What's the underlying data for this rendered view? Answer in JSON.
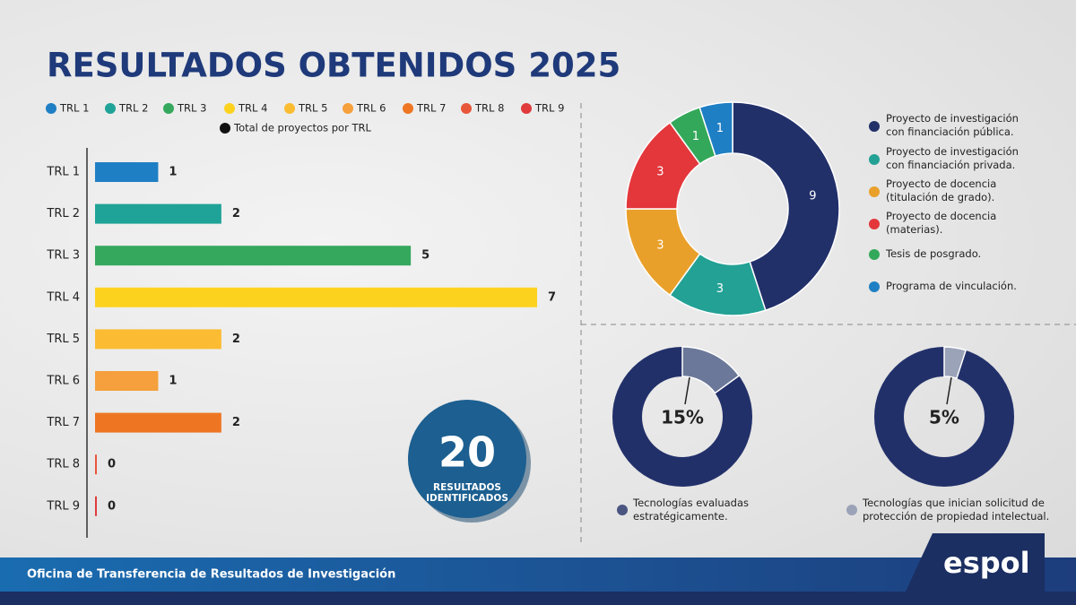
{
  "title": "RESULTADOS OBTENIDOS 2025",
  "badge": {
    "value": 20,
    "label": "RESULTADOS IDENTIFICADOS"
  },
  "footer": "Oficina de Transferencia de Resultados de Investigación",
  "logo": "espol",
  "chart_data": [
    {
      "type": "bar",
      "orientation": "horizontal",
      "categories": [
        "TRL 1",
        "TRL 2",
        "TRL 3",
        "TRL 4",
        "TRL 5",
        "TRL 6",
        "TRL 7",
        "TRL 8",
        "TRL 9"
      ],
      "values": [
        1,
        2,
        5,
        7,
        2,
        1,
        2,
        0,
        0
      ],
      "colors": [
        "#1f7fc4",
        "#1fa398",
        "#35a85d",
        "#fdd21f",
        "#fbbc33",
        "#f5a03c",
        "#ee7623",
        "#e8563a",
        "#e03a3c"
      ],
      "value_legend": "Total de proyectos por TRL",
      "value_legend_color": "#111111",
      "xlim": [
        0,
        7
      ]
    },
    {
      "type": "pie",
      "donut": true,
      "categories": [
        "Proyecto de investigación con financiación pública.",
        "Proyecto de investigación con financiación privada.",
        "Proyecto de docencia (titulación de grado).",
        "Proyecto de docencia (materias).",
        "Tesis de posgrado.",
        "Programa de vinculación."
      ],
      "values": [
        9,
        3,
        3,
        3,
        1,
        1
      ],
      "colors": [
        "#22306a",
        "#23a195",
        "#e9a02a",
        "#e3373b",
        "#34a85a",
        "#1f7fc4"
      ]
    },
    {
      "type": "gauge",
      "value": 15,
      "value_label": "15%",
      "range": [
        0,
        100
      ],
      "caption": "Tecnologías evaluadas estratégicamente.",
      "color": "#6b7899",
      "base_color": "#22306a",
      "caption_color": "#4a5580"
    },
    {
      "type": "gauge",
      "value": 5,
      "value_label": "5%",
      "range": [
        0,
        100
      ],
      "caption": "Tecnologías que inician solicitud de protección de propiedad intelectual.",
      "color": "#9aa3b8",
      "base_color": "#22306a",
      "caption_color": "#9aa3b8"
    }
  ]
}
